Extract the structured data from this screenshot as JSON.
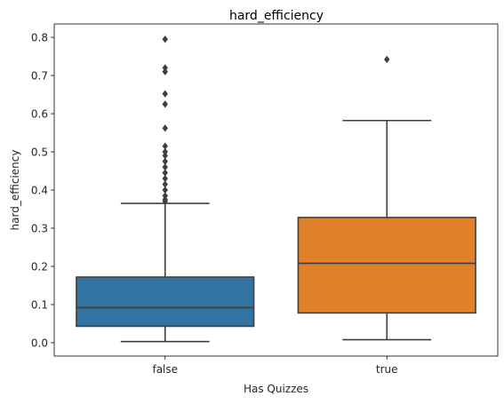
{
  "chart_data": {
    "type": "box",
    "title": "hard_efficiency",
    "xlabel": "Has Quizzes",
    "ylabel": "hard_efficiency",
    "ylim": [
      -0.035,
      0.835
    ],
    "yticks": [
      0.0,
      0.1,
      0.2,
      0.3,
      0.4,
      0.5,
      0.6,
      0.7,
      0.8
    ],
    "ytick_labels": [
      "0.0",
      "0.1",
      "0.2",
      "0.3",
      "0.4",
      "0.5",
      "0.6",
      "0.7",
      "0.8"
    ],
    "categories": [
      "false",
      "true"
    ],
    "grid": false,
    "boxes": [
      {
        "category": "false",
        "color": "#3274a1",
        "whisker_low": 0.003,
        "q1": 0.043,
        "median": 0.092,
        "q3": 0.172,
        "whisker_high": 0.365,
        "outliers": [
          0.795,
          0.72,
          0.71,
          0.652,
          0.625,
          0.562,
          0.515,
          0.5,
          0.49,
          0.475,
          0.46,
          0.445,
          0.43,
          0.415,
          0.4,
          0.385,
          0.375,
          0.37
        ]
      },
      {
        "category": "true",
        "color": "#e1812c",
        "whisker_low": 0.008,
        "q1": 0.078,
        "median": 0.208,
        "q3": 0.328,
        "whisker_high": 0.582,
        "outliers": [
          0.742
        ]
      }
    ]
  }
}
